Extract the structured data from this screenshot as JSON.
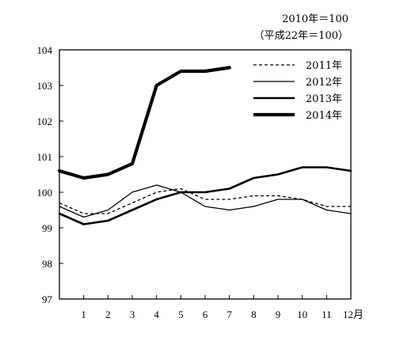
{
  "chart_data": {
    "type": "line",
    "title": "",
    "xlabel": "",
    "ylabel": "",
    "notes": [
      "2010年＝100",
      "（平成22年＝100）"
    ],
    "x": [
      0,
      1,
      2,
      3,
      4,
      5,
      6,
      7,
      8,
      9,
      10,
      11,
      12
    ],
    "x_tick_labels": [
      "1",
      "2",
      "3",
      "4",
      "5",
      "6",
      "7",
      "8",
      "9",
      "10",
      "11",
      "12月"
    ],
    "xlim": [
      0,
      12
    ],
    "ylim": [
      97,
      104
    ],
    "y_ticks": [
      97,
      98,
      99,
      100,
      101,
      102,
      103,
      104
    ],
    "grid": false,
    "legend_position": "top-right",
    "series": [
      {
        "name": "2011年",
        "style": "dashed",
        "width": 1.3,
        "color": "#000000",
        "values": [
          99.7,
          99.4,
          99.4,
          99.7,
          100.0,
          100.1,
          99.8,
          99.8,
          99.9,
          99.9,
          99.8,
          99.6,
          99.6
        ]
      },
      {
        "name": "2012年",
        "style": "thin",
        "width": 1.3,
        "color": "#000000",
        "values": [
          99.6,
          99.3,
          99.5,
          100.0,
          100.2,
          100.0,
          99.6,
          99.5,
          99.6,
          99.8,
          99.8,
          99.5,
          99.4
        ]
      },
      {
        "name": "2013年",
        "style": "medium",
        "width": 2.6,
        "color": "#000000",
        "values": [
          99.4,
          99.1,
          99.2,
          99.5,
          99.8,
          100.0,
          100.0,
          100.1,
          100.4,
          100.5,
          100.7,
          100.7,
          100.6
        ]
      },
      {
        "name": "2014年",
        "style": "thick",
        "width": 4.2,
        "color": "#000000",
        "values": [
          100.6,
          100.4,
          100.5,
          100.8,
          103.0,
          103.4,
          103.4,
          103.5,
          null,
          null,
          null,
          null,
          null
        ]
      }
    ]
  }
}
